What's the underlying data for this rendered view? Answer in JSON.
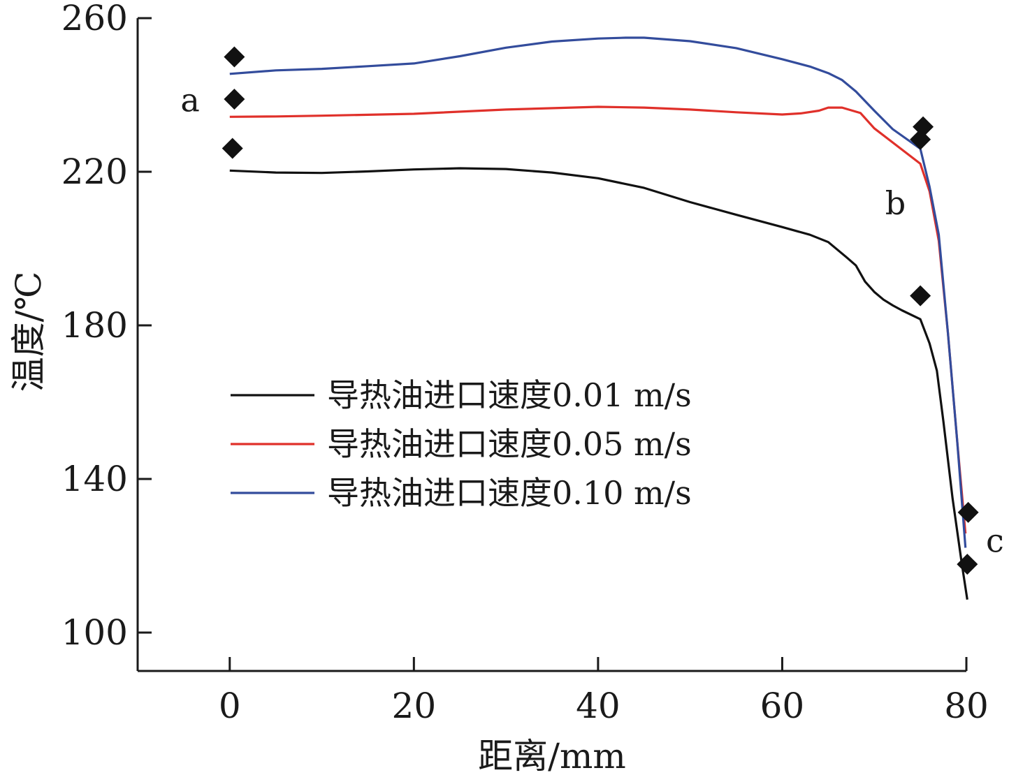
{
  "chart_data": {
    "type": "line",
    "xlabel": "距离/mm",
    "ylabel": "温度/℃",
    "xlim": [
      -10,
      80
    ],
    "ylim": [
      90,
      260
    ],
    "x_ticks": [
      "0",
      "20",
      "40",
      "60",
      "80"
    ],
    "y_ticks": [
      "100",
      "140",
      "180",
      "220",
      "260"
    ],
    "grid": false,
    "legend_position": "middle-left",
    "series": [
      {
        "name": "导热油进口速度0.01 m/s",
        "color": "#111111",
        "points": [
          [
            0,
            220.3
          ],
          [
            5,
            219.8
          ],
          [
            10,
            219.7
          ],
          [
            15,
            220.1
          ],
          [
            20,
            220.6
          ],
          [
            25,
            220.9
          ],
          [
            30,
            220.7
          ],
          [
            35,
            219.8
          ],
          [
            40,
            218.3
          ],
          [
            45,
            215.8
          ],
          [
            50,
            212.1
          ],
          [
            55,
            208.8
          ],
          [
            60,
            205.6
          ],
          [
            63,
            203.6
          ],
          [
            65,
            201.7
          ],
          [
            67,
            197.7
          ],
          [
            68,
            195.6
          ],
          [
            69,
            191.4
          ],
          [
            70,
            188.7
          ],
          [
            71,
            186.7
          ],
          [
            72,
            185.2
          ],
          [
            73,
            183.9
          ],
          [
            75,
            181.6
          ],
          [
            76,
            175.3
          ],
          [
            76.8,
            168.2
          ],
          [
            77.5,
            155
          ],
          [
            78.5,
            135
          ],
          [
            79.5,
            118
          ],
          [
            80.1,
            108.6
          ]
        ]
      },
      {
        "name": "导热油进口速度0.05 m/s",
        "color": "#e0302a",
        "points": [
          [
            0,
            234.3
          ],
          [
            5,
            234.4
          ],
          [
            10,
            234.6
          ],
          [
            20,
            235.1
          ],
          [
            30,
            236.2
          ],
          [
            40,
            236.9
          ],
          [
            45,
            236.7
          ],
          [
            50,
            236.2
          ],
          [
            55,
            235.5
          ],
          [
            60,
            234.9
          ],
          [
            62,
            235.2
          ],
          [
            64,
            235.9
          ],
          [
            65,
            236.7
          ],
          [
            66.5,
            236.7
          ],
          [
            67.5,
            236.0
          ],
          [
            68.5,
            235.3
          ],
          [
            70,
            231.3
          ],
          [
            75,
            222.1
          ],
          [
            76,
            214.9
          ],
          [
            77,
            202
          ],
          [
            78,
            178
          ],
          [
            79,
            150
          ],
          [
            79.9,
            125.8
          ]
        ]
      },
      {
        "name": "导热油进口速度0.10 m/s",
        "color": "#334c9c",
        "points": [
          [
            0,
            245.5
          ],
          [
            5,
            246.4
          ],
          [
            10,
            246.8
          ],
          [
            15,
            247.5
          ],
          [
            20,
            248.2
          ],
          [
            25,
            250.1
          ],
          [
            30,
            252.3
          ],
          [
            35,
            253.9
          ],
          [
            40,
            254.7
          ],
          [
            43,
            254.9
          ],
          [
            45,
            254.9
          ],
          [
            50,
            254.0
          ],
          [
            55,
            252.2
          ],
          [
            60,
            249.3
          ],
          [
            63,
            247.4
          ],
          [
            65,
            245.7
          ],
          [
            66.5,
            243.9
          ],
          [
            68,
            240.9
          ],
          [
            70,
            235.9
          ],
          [
            72,
            231.1
          ],
          [
            75,
            226.0
          ],
          [
            76,
            216.1
          ],
          [
            77,
            203.6
          ],
          [
            78,
            178
          ],
          [
            79,
            150
          ],
          [
            79.9,
            122.1
          ]
        ]
      }
    ],
    "markers": [
      {
        "shape": "diamond",
        "x": 0.5,
        "y": 249.9
      },
      {
        "shape": "diamond",
        "x": 0.5,
        "y": 238.9
      },
      {
        "shape": "diamond",
        "x": 0.3,
        "y": 226.1
      },
      {
        "shape": "diamond",
        "x": 75.3,
        "y": 231.7
      },
      {
        "shape": "diamond",
        "x": 75.0,
        "y": 228.4
      },
      {
        "shape": "diamond",
        "x": 75.0,
        "y": 187.7
      },
      {
        "shape": "diamond",
        "x": 80.2,
        "y": 131.3
      },
      {
        "shape": "diamond",
        "x": 80.1,
        "y": 117.8
      }
    ],
    "annotations": [
      {
        "text": "a",
        "x": -4.3,
        "y": 238.6
      },
      {
        "text": "b",
        "x": 72.3,
        "y": 211.8
      },
      {
        "text": "c",
        "x": 83.1,
        "y": 123.9
      }
    ]
  }
}
